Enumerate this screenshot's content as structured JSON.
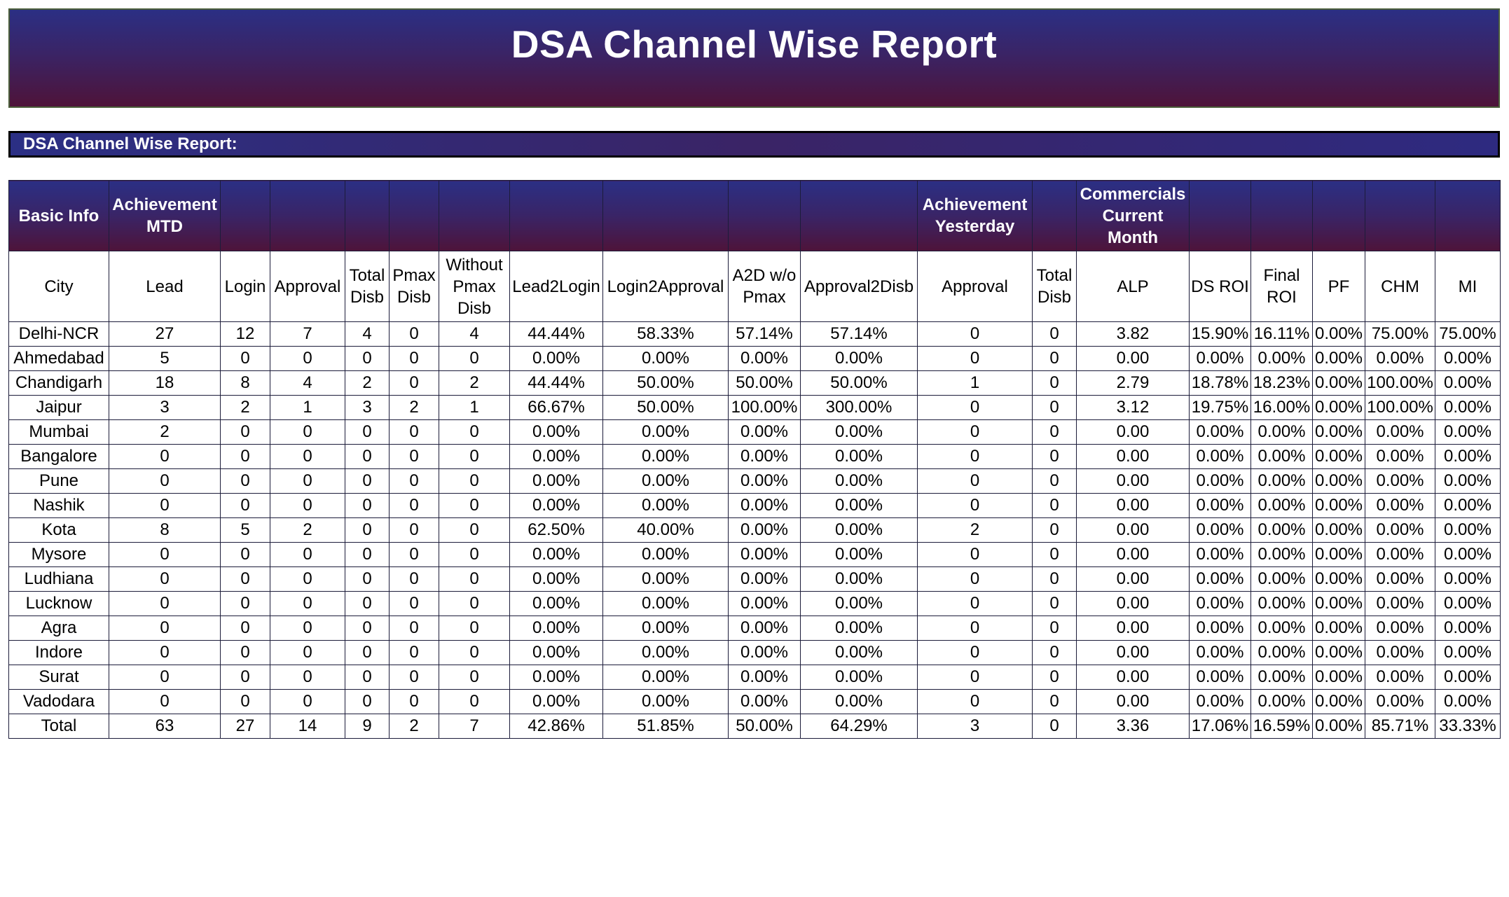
{
  "banner": {
    "title": "DSA Channel Wise Report"
  },
  "section": {
    "title": "DSA Channel Wise Report:"
  },
  "groups": [
    "Basic Info",
    "Achievement MTD",
    "",
    "",
    "",
    "",
    "",
    "",
    "",
    "",
    "",
    "Achievement Yesterday",
    "",
    "Commercials Current Month",
    "",
    "",
    "",
    "",
    ""
  ],
  "columns": [
    "City",
    "Lead",
    "Login",
    "Approval",
    "Total Disb",
    "Pmax Disb",
    "Without Pmax Disb",
    "Lead2Login",
    "Login2Approval",
    "A2D w/o Pmax",
    "Approval2Disb",
    "Approval",
    "Total Disb",
    "ALP",
    "DS ROI",
    "Final ROI",
    "PF",
    "CHM",
    "MI"
  ],
  "rows": [
    [
      "Delhi-NCR",
      "27",
      "12",
      "7",
      "4",
      "0",
      "4",
      "44.44%",
      "58.33%",
      "57.14%",
      "57.14%",
      "0",
      "0",
      "3.82",
      "15.90%",
      "16.11%",
      "0.00%",
      "75.00%",
      "75.00%"
    ],
    [
      "Ahmedabad",
      "5",
      "0",
      "0",
      "0",
      "0",
      "0",
      "0.00%",
      "0.00%",
      "0.00%",
      "0.00%",
      "0",
      "0",
      "0.00",
      "0.00%",
      "0.00%",
      "0.00%",
      "0.00%",
      "0.00%"
    ],
    [
      "Chandigarh",
      "18",
      "8",
      "4",
      "2",
      "0",
      "2",
      "44.44%",
      "50.00%",
      "50.00%",
      "50.00%",
      "1",
      "0",
      "2.79",
      "18.78%",
      "18.23%",
      "0.00%",
      "100.00%",
      "0.00%"
    ],
    [
      "Jaipur",
      "3",
      "2",
      "1",
      "3",
      "2",
      "1",
      "66.67%",
      "50.00%",
      "100.00%",
      "300.00%",
      "0",
      "0",
      "3.12",
      "19.75%",
      "16.00%",
      "0.00%",
      "100.00%",
      "0.00%"
    ],
    [
      "Mumbai",
      "2",
      "0",
      "0",
      "0",
      "0",
      "0",
      "0.00%",
      "0.00%",
      "0.00%",
      "0.00%",
      "0",
      "0",
      "0.00",
      "0.00%",
      "0.00%",
      "0.00%",
      "0.00%",
      "0.00%"
    ],
    [
      "Bangalore",
      "0",
      "0",
      "0",
      "0",
      "0",
      "0",
      "0.00%",
      "0.00%",
      "0.00%",
      "0.00%",
      "0",
      "0",
      "0.00",
      "0.00%",
      "0.00%",
      "0.00%",
      "0.00%",
      "0.00%"
    ],
    [
      "Pune",
      "0",
      "0",
      "0",
      "0",
      "0",
      "0",
      "0.00%",
      "0.00%",
      "0.00%",
      "0.00%",
      "0",
      "0",
      "0.00",
      "0.00%",
      "0.00%",
      "0.00%",
      "0.00%",
      "0.00%"
    ],
    [
      "Nashik",
      "0",
      "0",
      "0",
      "0",
      "0",
      "0",
      "0.00%",
      "0.00%",
      "0.00%",
      "0.00%",
      "0",
      "0",
      "0.00",
      "0.00%",
      "0.00%",
      "0.00%",
      "0.00%",
      "0.00%"
    ],
    [
      "Kota",
      "8",
      "5",
      "2",
      "0",
      "0",
      "0",
      "62.50%",
      "40.00%",
      "0.00%",
      "0.00%",
      "2",
      "0",
      "0.00",
      "0.00%",
      "0.00%",
      "0.00%",
      "0.00%",
      "0.00%"
    ],
    [
      "Mysore",
      "0",
      "0",
      "0",
      "0",
      "0",
      "0",
      "0.00%",
      "0.00%",
      "0.00%",
      "0.00%",
      "0",
      "0",
      "0.00",
      "0.00%",
      "0.00%",
      "0.00%",
      "0.00%",
      "0.00%"
    ],
    [
      "Ludhiana",
      "0",
      "0",
      "0",
      "0",
      "0",
      "0",
      "0.00%",
      "0.00%",
      "0.00%",
      "0.00%",
      "0",
      "0",
      "0.00",
      "0.00%",
      "0.00%",
      "0.00%",
      "0.00%",
      "0.00%"
    ],
    [
      "Lucknow",
      "0",
      "0",
      "0",
      "0",
      "0",
      "0",
      "0.00%",
      "0.00%",
      "0.00%",
      "0.00%",
      "0",
      "0",
      "0.00",
      "0.00%",
      "0.00%",
      "0.00%",
      "0.00%",
      "0.00%"
    ],
    [
      "Agra",
      "0",
      "0",
      "0",
      "0",
      "0",
      "0",
      "0.00%",
      "0.00%",
      "0.00%",
      "0.00%",
      "0",
      "0",
      "0.00",
      "0.00%",
      "0.00%",
      "0.00%",
      "0.00%",
      "0.00%"
    ],
    [
      "Indore",
      "0",
      "0",
      "0",
      "0",
      "0",
      "0",
      "0.00%",
      "0.00%",
      "0.00%",
      "0.00%",
      "0",
      "0",
      "0.00",
      "0.00%",
      "0.00%",
      "0.00%",
      "0.00%",
      "0.00%"
    ],
    [
      "Surat",
      "0",
      "0",
      "0",
      "0",
      "0",
      "0",
      "0.00%",
      "0.00%",
      "0.00%",
      "0.00%",
      "0",
      "0",
      "0.00",
      "0.00%",
      "0.00%",
      "0.00%",
      "0.00%",
      "0.00%"
    ],
    [
      "Vadodara",
      "0",
      "0",
      "0",
      "0",
      "0",
      "0",
      "0.00%",
      "0.00%",
      "0.00%",
      "0.00%",
      "0",
      "0",
      "0.00",
      "0.00%",
      "0.00%",
      "0.00%",
      "0.00%",
      "0.00%"
    ],
    [
      "Total",
      "63",
      "27",
      "14",
      "9",
      "2",
      "7",
      "42.86%",
      "51.85%",
      "50.00%",
      "64.29%",
      "3",
      "0",
      "3.36",
      "17.06%",
      "16.59%",
      "0.00%",
      "85.71%",
      "33.33%"
    ]
  ],
  "colors": {
    "header_top": "#2b2f84",
    "header_mid": "#3a2466",
    "header_bottom": "#4e1339",
    "header_text": "#ffffff"
  }
}
